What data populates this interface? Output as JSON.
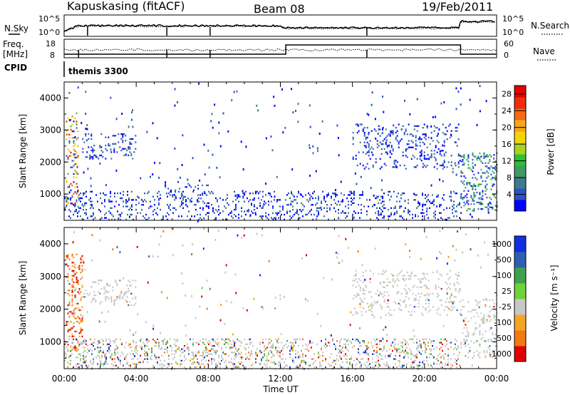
{
  "header": {
    "station": "Kapuskasing (fitACF)",
    "beam": "Beam 08",
    "date": "19/Feb/2011"
  },
  "noise_panel": {
    "left_label": "N.Sky",
    "right_label": "N.Search",
    "ytick_top": "10^5",
    "ytick_bottom": "10^0"
  },
  "freq_panel": {
    "left_label_line1": "Freq.",
    "left_label_line2": "[MHz]",
    "right_label": "Nave",
    "left_ticks": [
      "18",
      "8"
    ],
    "right_ticks": [
      "60",
      "0"
    ]
  },
  "cpid_panel": {
    "label": "CPID",
    "program": "themis 3300"
  },
  "x_axis": {
    "ticks": [
      "00:00",
      "04:00",
      "08:00",
      "12:00",
      "16:00",
      "20:00",
      "00:00"
    ],
    "label": "Time UT"
  },
  "colors": {
    "power": [
      "#0000ff",
      "#2b52c8",
      "#3e7a8e",
      "#3f9b62",
      "#2fc036",
      "#a9d41b",
      "#f3d40b",
      "#f6a51b",
      "#f46a12",
      "#ee2d0c",
      "#e20000"
    ],
    "velocity": [
      "#e00000",
      "#f27a12",
      "#f4a623",
      "#c8c8c8",
      "#6fd23a",
      "#3fa24b",
      "#2f5fb3",
      "#1030e0"
    ]
  },
  "chart_data": [
    {
      "type": "heatmap",
      "name_text": "power",
      "ylabel": "Slant Range [km]",
      "yticks": [
        "1000",
        "2000",
        "3000",
        "4000"
      ],
      "ylim": [
        180,
        4500
      ],
      "xlim_hours": [
        0,
        24
      ],
      "colorbar": {
        "label": "Power [dB]",
        "ticks": [
          "4",
          "8",
          "12",
          "16",
          "20",
          "24",
          "28"
        ],
        "range": [
          0,
          30
        ]
      },
      "regions": [
        {
          "t": [
            0.1,
            0.8
          ],
          "r": [
            600,
            3600
          ],
          "level": "mixed_high"
        },
        {
          "t": [
            1.0,
            4.0
          ],
          "r": [
            2100,
            2900
          ],
          "level": "low"
        },
        {
          "t": [
            0.0,
            22.0
          ],
          "r": [
            180,
            1100
          ],
          "level": "low"
        },
        {
          "t": [
            5.5,
            8.0
          ],
          "r": [
            800,
            1400
          ],
          "level": "low"
        },
        {
          "t": [
            16.0,
            22.0
          ],
          "r": [
            1800,
            3200
          ],
          "level": "low"
        },
        {
          "t": [
            22.0,
            24.0
          ],
          "r": [
            500,
            2300
          ],
          "level": "mixed"
        }
      ]
    },
    {
      "type": "heatmap",
      "name_text": "velocity",
      "ylabel": "Slant Range [km]",
      "yticks": [
        "1000",
        "2000",
        "3000",
        "4000"
      ],
      "ylim": [
        180,
        4500
      ],
      "xlim_hours": [
        0,
        24
      ],
      "colorbar": {
        "label": "Velocity  [m s⁻¹]",
        "ticks": [
          "1000",
          "500",
          "100",
          "25",
          "-25",
          "-100",
          "-500",
          "-1000"
        ]
      },
      "regions": [
        {
          "t": [
            0.1,
            1.0
          ],
          "r": [
            700,
            3700
          ],
          "level": "negative"
        },
        {
          "t": [
            1.0,
            4.0
          ],
          "r": [
            2100,
            2900
          ],
          "level": "zero"
        },
        {
          "t": [
            0.0,
            22.0
          ],
          "r": [
            180,
            1100
          ],
          "level": "mixed"
        },
        {
          "t": [
            16.0,
            22.0
          ],
          "r": [
            1800,
            3200
          ],
          "level": "zero"
        },
        {
          "t": [
            22.0,
            24.0
          ],
          "r": [
            500,
            2300
          ],
          "level": "zero"
        }
      ]
    }
  ]
}
